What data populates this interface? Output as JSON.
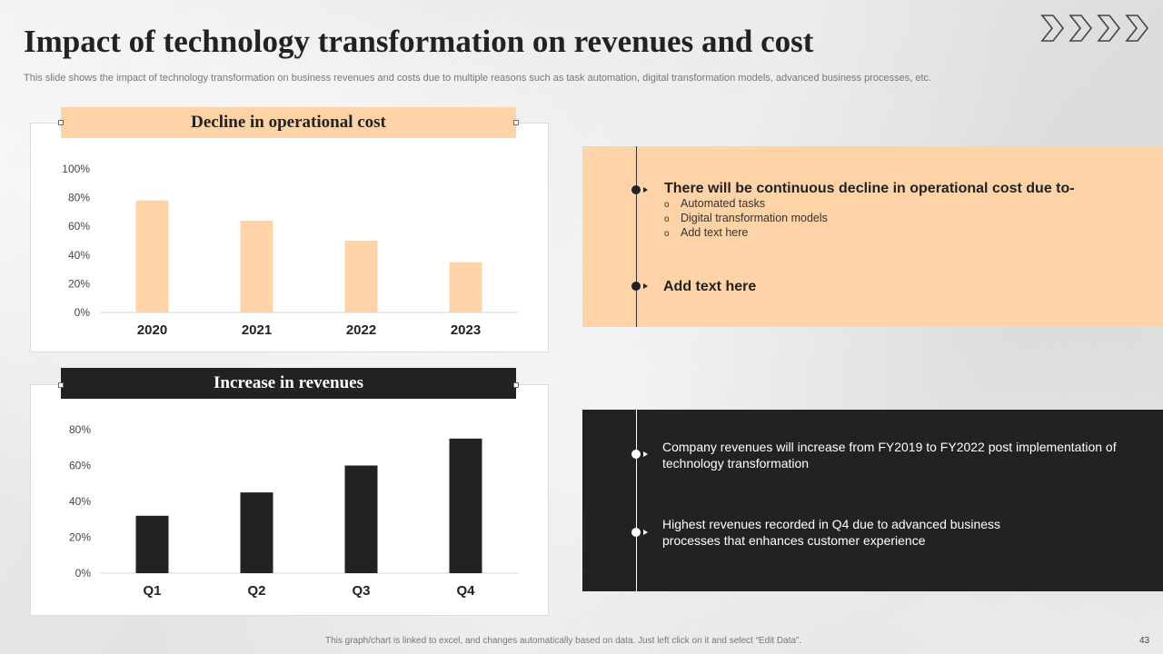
{
  "slide": {
    "title": "Impact of technology transformation on revenues and cost",
    "subtitle": "This slide shows the impact of technology transformation on business revenues and costs due to multiple reasons such as task automation, digital transformation models, advanced business processes, etc.",
    "footer_note": "This graph/chart is linked to excel, and changes automatically based on data. Just left click on it and select “Edit Data”.",
    "page_number": "43",
    "decoration_icon": "chevron-right-icon"
  },
  "colors": {
    "peach": "#fdd3a7",
    "dark": "#222222"
  },
  "chart_data": [
    {
      "type": "bar",
      "title": "Decline in operational cost",
      "categories": [
        "2020",
        "2021",
        "2022",
        "2023"
      ],
      "values": [
        78,
        64,
        50,
        35
      ],
      "yticks": [
        "0%",
        "20%",
        "40%",
        "60%",
        "80%",
        "100%"
      ],
      "ylim": [
        0,
        100
      ],
      "xlabel": "",
      "ylabel": "",
      "grid": false,
      "color": "#fdd3a7"
    },
    {
      "type": "bar",
      "title": "Increase in revenues",
      "categories": [
        "Q1",
        "Q2",
        "Q3",
        "Q4"
      ],
      "values": [
        32,
        45,
        60,
        75
      ],
      "yticks": [
        "0%",
        "20%",
        "40%",
        "60%",
        "80%"
      ],
      "ylim": [
        0,
        80
      ],
      "xlabel": "",
      "ylabel": "",
      "grid": false,
      "color": "#222222"
    }
  ],
  "cost_panel": {
    "heading": "There will be continuous decline in operational cost due to-",
    "items": [
      "Automated tasks",
      "Digital transformation models",
      "Add text here"
    ],
    "heading2": "Add text here"
  },
  "revenue_panel": {
    "points": [
      "Company revenues will increase from FY2019 to FY2022 post implementation of technology transformation",
      "Highest revenues recorded in Q4 due to advanced business processes that enhances customer experience"
    ]
  }
}
